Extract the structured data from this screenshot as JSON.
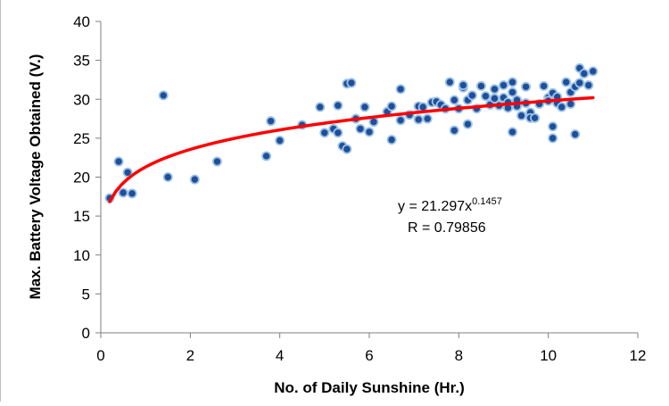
{
  "chart_data": {
    "type": "scatter",
    "xlabel": "No. of Daily Sunshine (Hr.)",
    "ylabel": "Max. Battery Voltage Obtained (V.)",
    "xlim": [
      0,
      12
    ],
    "ylim": [
      0,
      40
    ],
    "x_ticks": [
      "0",
      "2",
      "4",
      "6",
      "8",
      "10",
      "12"
    ],
    "y_ticks": [
      "0",
      "5",
      "10",
      "15",
      "20",
      "25",
      "30",
      "35",
      "40"
    ],
    "grid": false,
    "legend": "none",
    "marker_color": "#1f4e9a",
    "marker_edge_color": "#9dc3e6",
    "trendline_color": "#ff0000",
    "trendline": {
      "type": "power",
      "a": 21.297,
      "b": 0.1457,
      "x_range": [
        0.2,
        11.0
      ]
    },
    "annotation": {
      "equation_prefix": "y = 21.297x",
      "equation_exponent": "0.1457",
      "r_text": "R = 0.79856"
    },
    "points": [
      [
        0.2,
        17.3
      ],
      [
        0.4,
        22.0
      ],
      [
        0.5,
        18.0
      ],
      [
        0.6,
        20.6
      ],
      [
        0.7,
        17.9
      ],
      [
        1.4,
        30.5
      ],
      [
        1.5,
        20.0
      ],
      [
        2.1,
        19.7
      ],
      [
        2.6,
        22.0
      ],
      [
        3.7,
        22.7
      ],
      [
        3.8,
        27.2
      ],
      [
        4.0,
        24.7
      ],
      [
        4.5,
        26.7
      ],
      [
        4.9,
        29.0
      ],
      [
        5.0,
        25.7
      ],
      [
        5.2,
        26.2
      ],
      [
        5.3,
        25.7
      ],
      [
        5.3,
        29.2
      ],
      [
        5.4,
        24.0
      ],
      [
        5.5,
        23.6
      ],
      [
        5.5,
        32.0
      ],
      [
        5.6,
        32.1
      ],
      [
        5.7,
        27.5
      ],
      [
        5.8,
        26.2
      ],
      [
        5.9,
        29.0
      ],
      [
        6.0,
        25.8
      ],
      [
        6.1,
        27.1
      ],
      [
        6.4,
        28.4
      ],
      [
        6.5,
        29.1
      ],
      [
        6.5,
        24.8
      ],
      [
        6.7,
        27.3
      ],
      [
        6.7,
        31.3
      ],
      [
        6.9,
        28.0
      ],
      [
        7.1,
        29.1
      ],
      [
        7.1,
        27.4
      ],
      [
        7.2,
        29.0
      ],
      [
        7.3,
        27.5
      ],
      [
        7.4,
        29.6
      ],
      [
        7.5,
        29.7
      ],
      [
        7.6,
        29.3
      ],
      [
        7.7,
        28.8
      ],
      [
        7.8,
        32.2
      ],
      [
        7.9,
        29.9
      ],
      [
        7.9,
        26.0
      ],
      [
        8.0,
        28.8
      ],
      [
        8.1,
        31.5
      ],
      [
        8.1,
        31.8
      ],
      [
        8.2,
        26.8
      ],
      [
        8.2,
        29.9
      ],
      [
        8.3,
        30.5
      ],
      [
        8.4,
        28.8
      ],
      [
        8.5,
        31.7
      ],
      [
        8.6,
        30.4
      ],
      [
        8.7,
        29.3
      ],
      [
        8.8,
        30.1
      ],
      [
        8.8,
        31.3
      ],
      [
        8.9,
        29.2
      ],
      [
        9.0,
        31.8
      ],
      [
        9.0,
        30.2
      ],
      [
        9.1,
        29.6
      ],
      [
        9.1,
        28.9
      ],
      [
        9.2,
        32.2
      ],
      [
        9.2,
        30.9
      ],
      [
        9.2,
        25.8
      ],
      [
        9.3,
        29.1
      ],
      [
        9.3,
        29.9
      ],
      [
        9.4,
        27.9
      ],
      [
        9.5,
        29.5
      ],
      [
        9.5,
        31.6
      ],
      [
        9.6,
        28.3
      ],
      [
        9.6,
        27.6
      ],
      [
        9.7,
        27.6
      ],
      [
        9.8,
        29.4
      ],
      [
        9.9,
        31.7
      ],
      [
        10.0,
        30.2
      ],
      [
        10.0,
        29.8
      ],
      [
        10.1,
        30.8
      ],
      [
        10.1,
        26.5
      ],
      [
        10.1,
        25.0
      ],
      [
        10.2,
        29.5
      ],
      [
        10.2,
        30.3
      ],
      [
        10.3,
        29.0
      ],
      [
        10.4,
        32.2
      ],
      [
        10.5,
        29.4
      ],
      [
        10.5,
        30.9
      ],
      [
        10.6,
        31.6
      ],
      [
        10.6,
        25.5
      ],
      [
        10.7,
        32.1
      ],
      [
        10.7,
        34.0
      ],
      [
        10.8,
        33.3
      ],
      [
        10.9,
        31.8
      ],
      [
        11.0,
        33.6
      ]
    ]
  }
}
